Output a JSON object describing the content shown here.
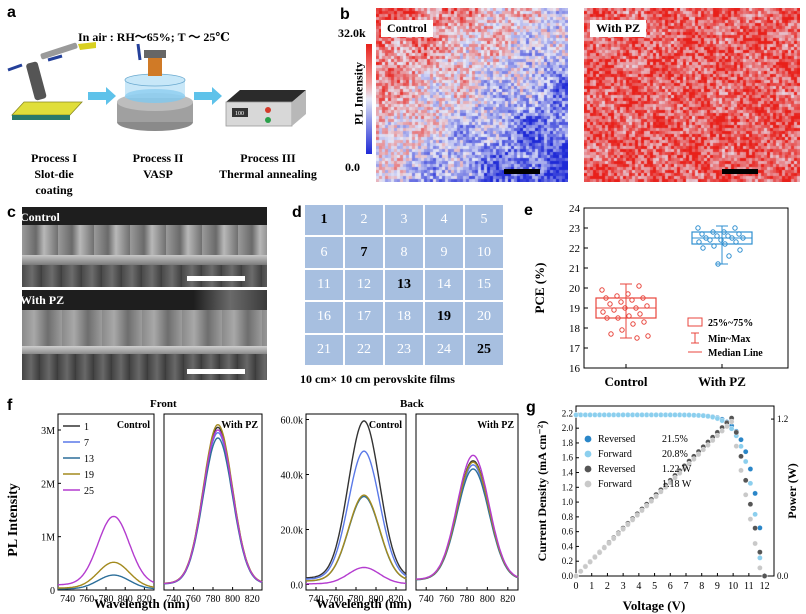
{
  "panel_letters": {
    "a": "a",
    "b": "b",
    "c": "c",
    "d": "d",
    "e": "e",
    "f": "f",
    "g": "g"
  },
  "panel_a": {
    "header": "In air : RH～65%; T ～ 25℃",
    "process1": "Process I",
    "process1_sub": "Slot-die coating",
    "process2": "Process II",
    "process2_sub": "VASP",
    "process3": "Process III",
    "process3_sub": "Thermal annealing",
    "display_text": "100"
  },
  "panel_b": {
    "colorbar_label": "PL Intensity",
    "colorbar_max": "32.0k",
    "colorbar_min": "0.0",
    "left_label": "Control",
    "right_label": "With PZ",
    "colors": {
      "low": "#1f2ad6",
      "mid": "#e6e8f7",
      "high": "#e8201a"
    }
  },
  "panel_c": {
    "top_label": "Control",
    "bottom_label": "With PZ"
  },
  "panel_d": {
    "cells": [
      "1",
      "2",
      "3",
      "4",
      "5",
      "6",
      "7",
      "8",
      "9",
      "10",
      "11",
      "12",
      "13",
      "14",
      "15",
      "16",
      "17",
      "18",
      "19",
      "20",
      "21",
      "22",
      "23",
      "24",
      "25"
    ],
    "highlight": [
      "1",
      "7",
      "13",
      "19",
      "25"
    ],
    "caption": "10 cm× 10 cm perovskite films",
    "cell_color": "#a7bfe0"
  },
  "panel_f": {
    "front_title": "Front",
    "back_title": "Back",
    "ylabel": "PL Intensity",
    "xlabel": "Wavelength (nm)",
    "control": "Control",
    "with_pz": "With PZ",
    "legend": [
      "1",
      "7",
      "13",
      "19",
      "25"
    ]
  },
  "chart_data": [
    {
      "type": "box",
      "id": "e",
      "ylabel": "PCE (%)",
      "ylim": [
        16,
        24
      ],
      "yticks": [
        "16",
        "17",
        "18",
        "19",
        "20",
        "21",
        "22",
        "23",
        "24"
      ],
      "categories": [
        "Control",
        "With PZ"
      ],
      "legend": [
        "25%~75%",
        "Min~Max",
        "Median Line"
      ],
      "colors": {
        "Control": "#e8453c",
        "With PZ": "#2f8fd0"
      },
      "boxes": [
        {
          "name": "Control",
          "min": 17.5,
          "q1": 18.5,
          "median": 19.0,
          "q3": 19.5,
          "max": 20.2,
          "points": [
            19.9,
            20.1,
            19.7,
            19.6,
            19.5,
            19.5,
            19.4,
            19.3,
            19.2,
            19.1,
            19.0,
            19.0,
            18.9,
            18.8,
            18.7,
            18.6,
            18.5,
            18.5,
            18.3,
            18.2,
            17.9,
            17.7,
            17.6,
            17.5
          ]
        },
        {
          "name": "With PZ",
          "min": 21.2,
          "q1": 22.2,
          "median": 22.5,
          "q3": 22.8,
          "max": 23.1,
          "points": [
            23.0,
            23.0,
            22.8,
            22.8,
            22.7,
            22.7,
            22.6,
            22.6,
            22.5,
            22.5,
            22.5,
            22.4,
            22.4,
            22.3,
            22.3,
            22.2,
            22.1,
            22.0,
            21.9,
            21.6,
            21.2
          ]
        }
      ]
    },
    {
      "type": "line",
      "id": "f-front-control",
      "title": "Control",
      "xlabel": "Wavelength (nm)",
      "ylabel": "PL Intensity",
      "xlim": [
        730,
        830
      ],
      "xticks": [
        "740",
        "760",
        "780",
        "800",
        "820"
      ],
      "ylim": [
        0,
        3300000
      ],
      "yticks": [
        "0",
        "1M",
        "2M",
        "3M"
      ],
      "ytick_values": [
        0,
        1000000,
        2000000,
        3000000
      ],
      "center": 788,
      "width": 23,
      "baseline_frac": 0.07,
      "series": [
        {
          "name": "1",
          "color": "#333333",
          "peak": 0
        },
        {
          "name": "7",
          "color": "#5a79e8",
          "peak": 0
        },
        {
          "name": "13",
          "color": "#2d6f9a",
          "peak": 280000
        },
        {
          "name": "19",
          "color": "#a38a1e",
          "peak": 520000
        },
        {
          "name": "25",
          "color": "#b43ccf",
          "peak": 1380000
        }
      ]
    },
    {
      "type": "line",
      "id": "f-front-pz",
      "title": "With PZ",
      "xlabel": "Wavelength (nm)",
      "xlim": [
        730,
        830
      ],
      "xticks": [
        "740",
        "760",
        "780",
        "800",
        "820"
      ],
      "ylim": [
        0,
        3300000
      ],
      "yticks": [],
      "ytick_values": [],
      "center": 785,
      "width": 21,
      "baseline_frac": 0.04,
      "series": [
        {
          "name": "1",
          "color": "#333333",
          "peak": 3050000
        },
        {
          "name": "7",
          "color": "#5a79e8",
          "peak": 2950000
        },
        {
          "name": "13",
          "color": "#2d6f9a",
          "peak": 2850000
        },
        {
          "name": "19",
          "color": "#a38a1e",
          "peak": 3100000
        },
        {
          "name": "25",
          "color": "#b43ccf",
          "peak": 3000000
        }
      ]
    },
    {
      "type": "line",
      "id": "f-back-control",
      "title": "Control",
      "xlabel": "Wavelength (nm)",
      "xlim": [
        730,
        830
      ],
      "xticks": [
        "740",
        "760",
        "780",
        "800",
        "820"
      ],
      "ylim": [
        -2000,
        62000
      ],
      "yticks": [
        "0.0",
        "20.0k",
        "40.0k",
        "60.0k"
      ],
      "ytick_values": [
        0,
        20000,
        40000,
        60000
      ],
      "center": 788,
      "width": 22,
      "baseline_frac": 0.04,
      "series": [
        {
          "name": "1",
          "color": "#333333",
          "peak": 59500
        },
        {
          "name": "7",
          "color": "#5a79e8",
          "peak": 48500
        },
        {
          "name": "13",
          "color": "#2d6f9a",
          "peak": 32000
        },
        {
          "name": "19",
          "color": "#a38a1e",
          "peak": 32500
        },
        {
          "name": "25",
          "color": "#b43ccf",
          "peak": 6200
        }
      ]
    },
    {
      "type": "line",
      "id": "f-back-pz",
      "title": "With PZ",
      "xlabel": "Wavelength (nm)",
      "xlim": [
        730,
        830
      ],
      "xticks": [
        "740",
        "760",
        "780",
        "800",
        "820"
      ],
      "ylim": [
        -2000,
        62000
      ],
      "yticks": [],
      "ytick_values": [],
      "center": 786,
      "width": 22,
      "baseline_frac": 0.04,
      "series": [
        {
          "name": "1",
          "color": "#333333",
          "peak": 45000
        },
        {
          "name": "7",
          "color": "#5a79e8",
          "peak": 43500
        },
        {
          "name": "13",
          "color": "#2d6f9a",
          "peak": 42000
        },
        {
          "name": "19",
          "color": "#a38a1e",
          "peak": 44500
        },
        {
          "name": "25",
          "color": "#b43ccf",
          "peak": 47000
        }
      ]
    },
    {
      "type": "line",
      "id": "g",
      "xlabel": "Voltage (V)",
      "ylabel": "Current Density (mA cm⁻²)",
      "y2label": "Power (W)",
      "xlim": [
        0,
        12.6
      ],
      "xticks": [
        "0",
        "1",
        "2",
        "3",
        "4",
        "5",
        "6",
        "7",
        "8",
        "9",
        "10",
        "11",
        "12"
      ],
      "ylim": [
        0,
        2.3
      ],
      "yticks": [
        "0.0",
        "0.2",
        "0.4",
        "0.6",
        "0.8",
        "1.0",
        "1.2",
        "1.4",
        "1.6",
        "1.8",
        "2.0",
        "2.2"
      ],
      "y2lim": [
        0,
        1.3
      ],
      "y2ticks": [
        "0.0",
        "1.2"
      ],
      "series": [
        {
          "name": "Reversed",
          "value": "21.5%",
          "color": "#2a86c8",
          "isc": 2.18,
          "voc": 12.0,
          "kind": "jv"
        },
        {
          "name": "Forward",
          "value": "20.8%",
          "color": "#8ccfee",
          "isc": 2.18,
          "voc": 11.8,
          "kind": "jv"
        },
        {
          "name": "Reversed",
          "value": "1.22 W",
          "color": "#555555",
          "pmax": 1.22,
          "vmp": 10.0,
          "voc": 12.0,
          "kind": "power"
        },
        {
          "name": "Forward",
          "value": "1.18 W",
          "color": "#c9c9c9",
          "pmax": 1.18,
          "vmp": 9.9,
          "voc": 11.8,
          "kind": "power"
        }
      ]
    }
  ]
}
